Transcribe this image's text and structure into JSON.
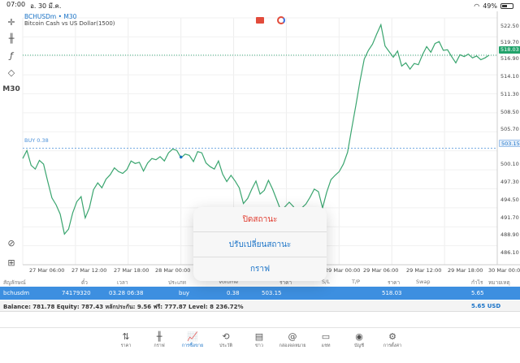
{
  "status_bar": {
    "time": "07:00",
    "date": "อ. 30 มี.ค.",
    "battery": "49%",
    "battery_level": 0.49
  },
  "toolbar": {
    "timeframe": "M30"
  },
  "chart": {
    "symbol": "BCHUSDm • M30",
    "description": "Bitcoin Cash vs US Dollar(1500)",
    "buy_label": "BUY 0.38",
    "current_price_tag": "518.03",
    "buy_price_tag": "503.15",
    "price_ticks": [
      "522.50",
      "519.70",
      "516.90",
      "514.10",
      "511.30",
      "508.50",
      "505.70",
      "503.15",
      "500.10",
      "497.30",
      "494.50",
      "491.70",
      "488.90",
      "486.10"
    ],
    "time_ticks": [
      "27 Mar 06:00",
      "27 Mar 12:00",
      "27 Mar 18:00",
      "28 Mar 00:00",
      "29 Mar 00:00",
      "29 Mar 06:00",
      "29 Mar 12:00",
      "29 Mar 18:00",
      "30 Mar 00:00"
    ],
    "line_color": "#3aa56f",
    "buy_line_color": "#4a90d9",
    "current_line_color": "#22a36b"
  },
  "chart_data": {
    "type": "line",
    "title": "",
    "xlabel": "",
    "ylabel": "",
    "ylim": [
      484.5,
      524.0
    ],
    "grid": true,
    "series": [
      {
        "values": [
          501.5,
          502.8,
          500.4,
          499.8,
          501.2,
          500.6,
          497.8,
          495.2,
          494.1,
          492.6,
          489.4,
          490.2,
          492.8,
          494.6,
          495.4,
          492.0,
          493.6,
          496.5,
          497.6,
          496.8,
          498.2,
          498.9,
          500.0,
          499.4,
          499.1,
          499.7,
          501.1,
          500.7,
          500.9,
          499.5,
          500.8,
          501.5,
          501.3,
          501.8,
          501.1,
          502.4,
          503.0,
          502.8,
          501.6,
          502.2,
          502.0,
          501.0,
          502.6,
          502.4,
          500.8,
          500.2,
          499.8,
          501.1,
          499.0,
          497.8,
          498.8,
          497.9,
          496.8,
          494.3,
          495.1,
          496.6,
          497.9,
          495.8,
          496.4,
          498.0,
          496.6,
          494.9,
          493.1,
          493.8,
          494.5,
          493.8,
          492.8,
          493.6,
          494.2,
          495.3,
          496.6,
          496.2,
          493.6,
          496.1,
          498.1,
          498.8,
          499.4,
          500.6,
          502.5,
          506.3,
          510.0,
          513.9,
          517.4,
          518.8,
          519.8,
          521.4,
          522.9,
          519.5,
          518.6,
          517.7,
          518.7,
          516.3,
          516.8,
          515.8,
          516.7,
          516.5,
          518.1,
          519.4,
          518.5,
          519.9,
          520.2,
          518.8,
          518.9,
          517.8,
          516.8,
          518.1,
          517.8,
          518.2,
          517.6,
          517.9,
          517.3,
          517.6,
          518.03
        ]
      }
    ],
    "hlines": [
      {
        "label": "BUY 0.38",
        "value": 503.15
      },
      {
        "label": "current",
        "value": 518.03
      }
    ]
  },
  "table": {
    "headers": [
      "สัญลักษณ์",
      "ตั๋ว",
      "เวลา",
      "ประเภท",
      "Volume",
      "ราคา",
      "S/L",
      "T/P",
      "ราคา",
      "Swap",
      "กำไร",
      "หมายเหตุ"
    ],
    "row": [
      "bchusdm",
      "74179320",
      "03.28 06:38",
      "buy",
      "0.38",
      "503.15",
      "",
      "",
      "518.03",
      "",
      "5.65",
      ""
    ]
  },
  "balance": {
    "text": "Balance: 781.78 Equity: 787.43 หลักประกัน: 9.56 ฟรี: 777.87 Level: 8 236.72%",
    "profit": "5.65  USD"
  },
  "context_menu": {
    "items": [
      "ปิดสถานะ",
      "ปรับเปลี่ยนสถานะ",
      "กราฟ"
    ]
  },
  "tabbar": {
    "items": [
      {
        "label": "ราคา",
        "icon": "arrows-updown-icon",
        "glyph": "⇅"
      },
      {
        "label": "กราฟ",
        "icon": "candles-icon",
        "glyph": "╫"
      },
      {
        "label": "การซื้อขาย",
        "icon": "trade-chart-icon",
        "glyph": "📈"
      },
      {
        "label": "ประวัติ",
        "icon": "history-icon",
        "glyph": "⟲"
      },
      {
        "label": "ข่าว",
        "icon": "news-icon",
        "glyph": "▤"
      },
      {
        "label": "กล่องจดหมาย",
        "icon": "at-icon",
        "glyph": "@"
      },
      {
        "label": "แชท",
        "icon": "chat-icon",
        "glyph": "▭"
      },
      {
        "label": "บัญชี",
        "icon": "account-icon",
        "glyph": "◉"
      },
      {
        "label": "การตั้งค่า",
        "icon": "gear-icon",
        "glyph": "⚙"
      }
    ]
  }
}
